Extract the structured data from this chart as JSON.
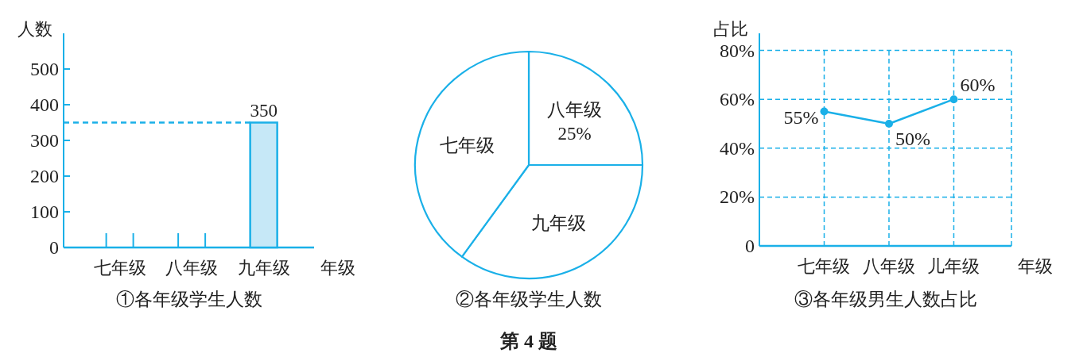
{
  "chart_data": [
    {
      "type": "bar",
      "title": "①各年级学生人数",
      "xlabel": "年级",
      "ylabel": "人数",
      "categories": [
        "七年级",
        "八年级",
        "九年级"
      ],
      "values": [
        null,
        null,
        350
      ],
      "color": "#c6e8f7",
      "data_labels": true,
      "ylim": [
        0,
        600
      ],
      "yticks": [
        0,
        100,
        200,
        300,
        400,
        500
      ],
      "ref_lines": [
        {
          "axis": "y",
          "value": 350,
          "color": "#1ab0e8",
          "line_style": "dashed"
        }
      ]
    },
    {
      "type": "pie",
      "title": "②各年级学生人数",
      "categories": [
        "八年级",
        "九年级",
        "七年级"
      ],
      "values": [
        25,
        35,
        40
      ],
      "colors": [
        "#ffffff",
        "#ffffff",
        "#ffffff"
      ],
      "value_labels": [
        "25%",
        null,
        null
      ],
      "annotations": [
        "第 4 题"
      ]
    },
    {
      "type": "line",
      "title": "③各年级男生人数占比",
      "xlabel": "年级",
      "ylabel": "占比",
      "categories": [
        "七年级",
        "八年级",
        "儿年级"
      ],
      "values": [
        55,
        50,
        60
      ],
      "value_labels": [
        "55%",
        "50%",
        "60%"
      ],
      "color": "#1ab0e8",
      "marker": "circle",
      "ylim": [
        0,
        87
      ],
      "yticks": [
        0,
        {
          "value": 20,
          "label": "20%"
        },
        {
          "value": 40,
          "label": "40%"
        },
        {
          "value": 60,
          "label": "60%"
        },
        {
          "value": 80,
          "label": "80%"
        }
      ],
      "grid": true
    }
  ]
}
